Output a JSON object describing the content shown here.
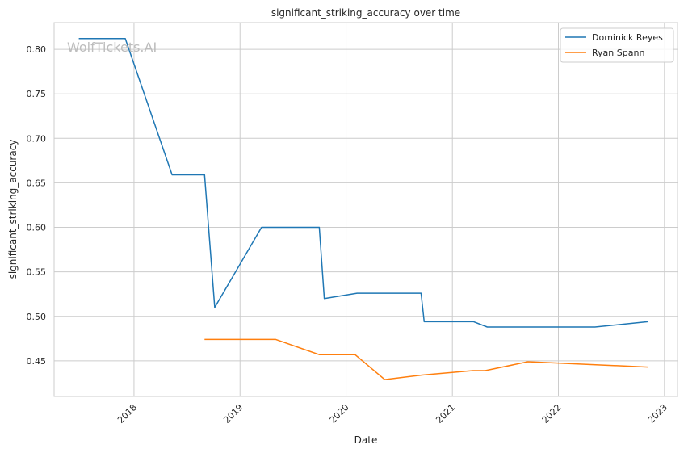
{
  "watermark": "WolfTickets.AI",
  "chart_data": {
    "type": "line",
    "title": "significant_striking_accuracy over time",
    "xlabel": "Date",
    "ylabel": "significant_striking_accuracy",
    "xlim": [
      "2017-04-01",
      "2023-02-15"
    ],
    "ylim": [
      0.41,
      0.83
    ],
    "x_ticks": [
      {
        "date": "2018-01-01",
        "label": "2018"
      },
      {
        "date": "2019-01-01",
        "label": "2019"
      },
      {
        "date": "2020-01-01",
        "label": "2020"
      },
      {
        "date": "2021-01-01",
        "label": "2021"
      },
      {
        "date": "2022-01-01",
        "label": "2022"
      },
      {
        "date": "2023-01-01",
        "label": "2023"
      }
    ],
    "y_ticks": [
      0.45,
      0.5,
      0.55,
      0.6,
      0.65,
      0.7,
      0.75,
      0.8
    ],
    "y_tick_labels": [
      "0.45",
      "0.50",
      "0.55",
      "0.60",
      "0.65",
      "0.70",
      "0.75",
      "0.80"
    ],
    "grid": true,
    "legend_position": "top-right",
    "series": [
      {
        "name": "Dominick Reyes",
        "color": "#1f77b4",
        "points": [
          {
            "x": "2017-06-25",
            "y": 0.812
          },
          {
            "x": "2017-12-02",
            "y": 0.812
          },
          {
            "x": "2018-05-12",
            "y": 0.659
          },
          {
            "x": "2018-09-01",
            "y": 0.659
          },
          {
            "x": "2018-10-06",
            "y": 0.51
          },
          {
            "x": "2019-03-16",
            "y": 0.6
          },
          {
            "x": "2019-10-01",
            "y": 0.6
          },
          {
            "x": "2019-10-18",
            "y": 0.52
          },
          {
            "x": "2020-02-08",
            "y": 0.526
          },
          {
            "x": "2020-09-15",
            "y": 0.526
          },
          {
            "x": "2020-09-26",
            "y": 0.494
          },
          {
            "x": "2021-03-15",
            "y": 0.494
          },
          {
            "x": "2021-05-01",
            "y": 0.488
          },
          {
            "x": "2022-05-07",
            "y": 0.488
          },
          {
            "x": "2022-11-05",
            "y": 0.494
          }
        ]
      },
      {
        "name": "Ryan Spann",
        "color": "#ff7f0e",
        "points": [
          {
            "x": "2018-09-01",
            "y": 0.474
          },
          {
            "x": "2019-05-04",
            "y": 0.474
          },
          {
            "x": "2019-10-01",
            "y": 0.457
          },
          {
            "x": "2020-02-01",
            "y": 0.457
          },
          {
            "x": "2020-05-13",
            "y": 0.429
          },
          {
            "x": "2020-09-19",
            "y": 0.434
          },
          {
            "x": "2021-03-13",
            "y": 0.439
          },
          {
            "x": "2021-04-24",
            "y": 0.439
          },
          {
            "x": "2021-09-18",
            "y": 0.449
          },
          {
            "x": "2022-11-05",
            "y": 0.443
          }
        ]
      }
    ]
  }
}
